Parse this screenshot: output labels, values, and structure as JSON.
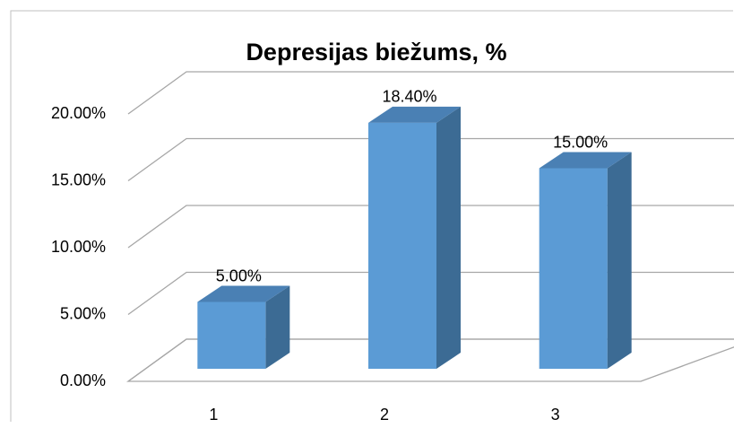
{
  "chart_data": {
    "type": "bar3d",
    "title": "Depresijas biežums, %",
    "categories": [
      "1",
      "2",
      "3"
    ],
    "values": [
      5,
      18.4,
      15
    ],
    "value_labels": [
      "5.00%",
      "18.40%",
      "15.00%"
    ],
    "color": "#5b9bd5",
    "ylim": [
      0,
      20
    ],
    "yticks": [
      {
        "value": 0,
        "label": "0.00%"
      },
      {
        "value": 5,
        "label": "5.00%"
      },
      {
        "value": 10,
        "label": "10.00%"
      },
      {
        "value": 15,
        "label": "15.00%"
      },
      {
        "value": 20,
        "label": "20.00%"
      }
    ],
    "grid": true
  }
}
